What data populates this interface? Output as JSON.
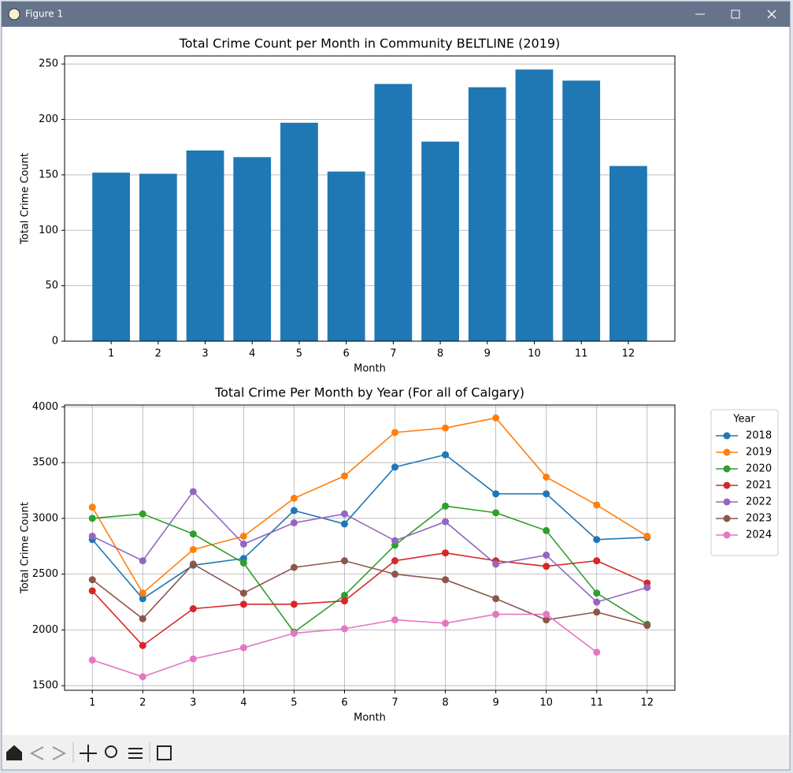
{
  "window": {
    "title": "Figure 1"
  },
  "chart_data": [
    {
      "type": "bar",
      "title": "Total Crime Count per Month in Community BELTLINE (2019)",
      "xlabel": "Month",
      "ylabel": "Total Crime Count",
      "x": [
        1,
        2,
        3,
        4,
        5,
        6,
        7,
        8,
        9,
        10,
        11,
        12
      ],
      "values": [
        152,
        151,
        172,
        166,
        197,
        153,
        232,
        180,
        229,
        245,
        235,
        158
      ],
      "color": "#1f77b4",
      "xlim": [
        0.01,
        12.99
      ],
      "xticks": [
        1,
        2,
        3,
        4,
        5,
        6,
        7,
        8,
        9,
        10,
        11,
        12
      ],
      "ylim": [
        0,
        257.25
      ],
      "yticks": [
        0,
        50,
        100,
        150,
        200,
        250
      ],
      "grid": "y"
    },
    {
      "type": "line",
      "title": "Total Crime Per Month by Year (For all of Calgary)",
      "xlabel": "Month",
      "ylabel": "Total Crime Count",
      "x": [
        1,
        2,
        3,
        4,
        5,
        6,
        7,
        8,
        9,
        10,
        11,
        12
      ],
      "xlim": [
        0.45,
        12.55
      ],
      "xticks": [
        1,
        2,
        3,
        4,
        5,
        6,
        7,
        8,
        9,
        10,
        11,
        12
      ],
      "ylim": [
        1459,
        4016
      ],
      "yticks": [
        1500,
        2000,
        2500,
        3000,
        3500,
        4000
      ],
      "grid": "both",
      "legend_title": "Year",
      "legend": "outside-right",
      "series": [
        {
          "name": "2018",
          "color": "#1f77b4",
          "values": [
            2810,
            2280,
            2580,
            2640,
            3070,
            2950,
            3460,
            3570,
            3220,
            3220,
            2810,
            2830
          ]
        },
        {
          "name": "2019",
          "color": "#ff7f0e",
          "values": [
            3100,
            2330,
            2720,
            2840,
            3180,
            3380,
            3770,
            3810,
            3900,
            3370,
            3120,
            2840
          ]
        },
        {
          "name": "2020",
          "color": "#2ca02c",
          "values": [
            3000,
            3040,
            2860,
            2600,
            1980,
            2310,
            2760,
            3110,
            3050,
            2890,
            2330,
            2050
          ]
        },
        {
          "name": "2021",
          "color": "#d62728",
          "values": [
            2350,
            1860,
            2190,
            2230,
            2230,
            2260,
            2620,
            2690,
            2620,
            2570,
            2620,
            2420
          ]
        },
        {
          "name": "2022",
          "color": "#9467bd",
          "values": [
            2840,
            2620,
            3240,
            2770,
            2960,
            3040,
            2800,
            2970,
            2590,
            2670,
            2250,
            2380
          ]
        },
        {
          "name": "2023",
          "color": "#8c564b",
          "values": [
            2450,
            2100,
            2590,
            2330,
            2560,
            2620,
            2500,
            2450,
            2280,
            2090,
            2160,
            2040
          ]
        },
        {
          "name": "2024",
          "color": "#e377c2",
          "values": [
            1730,
            1580,
            1740,
            1840,
            1970,
            2010,
            2090,
            2060,
            2140,
            2140,
            1800,
            null
          ]
        }
      ]
    }
  ]
}
